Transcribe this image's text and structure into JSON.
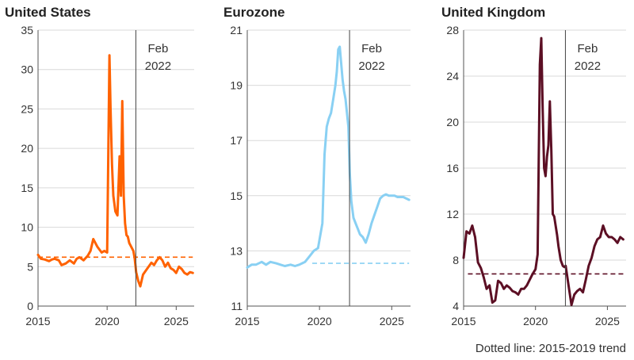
{
  "footnote": "Dotted line: 2015-2019 trend",
  "colors": {
    "us": "#ff6200",
    "ez": "#89d0f3",
    "uk": "#5c0f24"
  },
  "chart_data": [
    {
      "type": "line",
      "title": "United States",
      "xlim": [
        2015,
        2026.3
      ],
      "ylim": [
        0,
        35
      ],
      "yticks": [
        0,
        5,
        10,
        15,
        20,
        25,
        30,
        35
      ],
      "xticks": [
        2015,
        2020,
        2025
      ],
      "vline": {
        "x": 2022.08,
        "label_lines": [
          "Feb",
          "2022"
        ]
      },
      "trend": {
        "x": [
          2015,
          2026.2
        ],
        "y": [
          6.2,
          6.2
        ]
      },
      "series": [
        {
          "x": [
            2015.0,
            2015.2,
            2015.5,
            2015.8,
            2016.0,
            2016.2,
            2016.5,
            2016.7,
            2017.0,
            2017.3,
            2017.6,
            2017.8,
            2018.0,
            2018.3,
            2018.6,
            2018.8,
            2019.0,
            2019.3,
            2019.6,
            2019.8,
            2020.0,
            2020.17,
            2020.25,
            2020.35,
            2020.45,
            2020.6,
            2020.75,
            2020.9,
            2021.0,
            2021.1,
            2021.2,
            2021.3,
            2021.4,
            2021.5,
            2021.6,
            2021.75,
            2021.9,
            2022.0,
            2022.1,
            2022.25,
            2022.4,
            2022.6,
            2022.8,
            2023.0,
            2023.2,
            2023.4,
            2023.6,
            2023.8,
            2024.0,
            2024.2,
            2024.4,
            2024.6,
            2024.8,
            2025.0,
            2025.2,
            2025.4,
            2025.6,
            2025.8,
            2026.0,
            2026.2
          ],
          "y": [
            6.5,
            6.0,
            5.9,
            5.7,
            5.9,
            6.0,
            5.8,
            5.2,
            5.4,
            5.8,
            5.4,
            6.0,
            6.2,
            5.8,
            6.4,
            7.0,
            8.5,
            7.5,
            6.8,
            7.0,
            6.8,
            31.8,
            25.0,
            18.0,
            14.0,
            12.0,
            11.5,
            19.0,
            14.0,
            26.0,
            14.0,
            10.5,
            9.0,
            8.8,
            8.0,
            7.5,
            7.0,
            6.0,
            4.3,
            3.2,
            2.5,
            4.0,
            4.5,
            5.0,
            5.5,
            5.2,
            5.8,
            6.2,
            5.8,
            5.0,
            5.5,
            4.8,
            4.6,
            4.2,
            5.0,
            4.7,
            4.2,
            4.0,
            4.3,
            4.2
          ]
        }
      ]
    },
    {
      "type": "line",
      "title": "Eurozone",
      "xlim": [
        2015,
        2026.3
      ],
      "ylim": [
        11,
        21
      ],
      "yticks": [
        11,
        13,
        15,
        17,
        19,
        21
      ],
      "xticks": [
        2015,
        2020,
        2025
      ],
      "vline": {
        "x": 2022.08,
        "label_lines": [
          "Feb",
          "2022"
        ]
      },
      "trend": {
        "x": [
          2019.5,
          2026.2
        ],
        "y": [
          12.55,
          12.55
        ]
      },
      "series": [
        {
          "x": [
            2015.0,
            2015.3,
            2015.6,
            2016.0,
            2016.3,
            2016.6,
            2017.0,
            2017.3,
            2017.6,
            2018.0,
            2018.3,
            2018.6,
            2019.0,
            2019.3,
            2019.6,
            2019.9,
            2020.2,
            2020.35,
            2020.5,
            2020.65,
            2020.8,
            2020.95,
            2021.1,
            2021.2,
            2021.3,
            2021.4,
            2021.5,
            2021.6,
            2021.7,
            2021.8,
            2021.9,
            2022.0,
            2022.1,
            2022.2,
            2022.35,
            2022.5,
            2022.65,
            2022.8,
            2023.0,
            2023.2,
            2023.4,
            2023.6,
            2023.8,
            2024.0,
            2024.2,
            2024.4,
            2024.6,
            2024.8,
            2025.0,
            2025.2,
            2025.4,
            2025.6,
            2025.8,
            2026.0,
            2026.2
          ],
          "y": [
            12.4,
            12.5,
            12.5,
            12.6,
            12.5,
            12.6,
            12.55,
            12.5,
            12.45,
            12.5,
            12.45,
            12.5,
            12.6,
            12.8,
            13.0,
            13.1,
            14.0,
            16.5,
            17.5,
            17.8,
            18.0,
            18.5,
            19.0,
            19.5,
            20.3,
            20.4,
            19.8,
            19.2,
            18.8,
            18.5,
            18.0,
            17.5,
            15.8,
            14.8,
            14.2,
            14.0,
            13.8,
            13.6,
            13.5,
            13.3,
            13.6,
            14.0,
            14.3,
            14.6,
            14.9,
            15.0,
            15.05,
            15.0,
            15.0,
            15.0,
            14.95,
            14.95,
            14.95,
            14.9,
            14.85
          ]
        }
      ]
    },
    {
      "type": "line",
      "title": "United Kingdom",
      "xlim": [
        2015,
        2026.3
      ],
      "ylim": [
        4,
        28
      ],
      "yticks": [
        4,
        8,
        12,
        16,
        20,
        24,
        28
      ],
      "xticks": [
        2015,
        2020,
        2025
      ],
      "vline": {
        "x": 2022.08,
        "label_lines": [
          "Feb",
          "2022"
        ]
      },
      "trend": {
        "x": [
          2015.3,
          2026.2
        ],
        "y": [
          6.8,
          6.8
        ]
      },
      "series": [
        {
          "x": [
            2015.0,
            2015.2,
            2015.4,
            2015.6,
            2015.8,
            2016.0,
            2016.2,
            2016.4,
            2016.6,
            2016.8,
            2017.0,
            2017.2,
            2017.4,
            2017.6,
            2017.8,
            2018.0,
            2018.2,
            2018.4,
            2018.6,
            2018.8,
            2019.0,
            2019.2,
            2019.4,
            2019.6,
            2019.8,
            2020.0,
            2020.15,
            2020.3,
            2020.4,
            2020.5,
            2020.6,
            2020.7,
            2020.8,
            2020.9,
            2021.0,
            2021.1,
            2021.2,
            2021.3,
            2021.4,
            2021.5,
            2021.6,
            2021.75,
            2021.9,
            2022.0,
            2022.1,
            2022.3,
            2022.5,
            2022.7,
            2022.9,
            2023.1,
            2023.3,
            2023.5,
            2023.7,
            2023.9,
            2024.1,
            2024.3,
            2024.5,
            2024.7,
            2024.9,
            2025.1,
            2025.3,
            2025.5,
            2025.7,
            2025.9,
            2026.1
          ],
          "y": [
            8.2,
            10.5,
            10.3,
            11.0,
            10.0,
            7.8,
            7.3,
            6.5,
            5.5,
            5.8,
            4.3,
            4.5,
            6.2,
            6.0,
            5.5,
            5.8,
            5.6,
            5.3,
            5.2,
            5.0,
            5.5,
            5.5,
            5.8,
            6.3,
            6.8,
            7.2,
            8.5,
            25.0,
            27.3,
            21.0,
            16.0,
            15.3,
            17.0,
            18.0,
            21.8,
            17.5,
            12.0,
            11.8,
            11.0,
            10.2,
            9.2,
            8.0,
            7.5,
            7.4,
            7.5,
            5.8,
            4.1,
            5.0,
            5.3,
            5.5,
            5.2,
            6.3,
            7.5,
            8.2,
            9.2,
            9.8,
            10.0,
            11.0,
            10.3,
            10.0,
            10.0,
            9.8,
            9.5,
            10.0,
            9.8
          ]
        }
      ]
    }
  ]
}
